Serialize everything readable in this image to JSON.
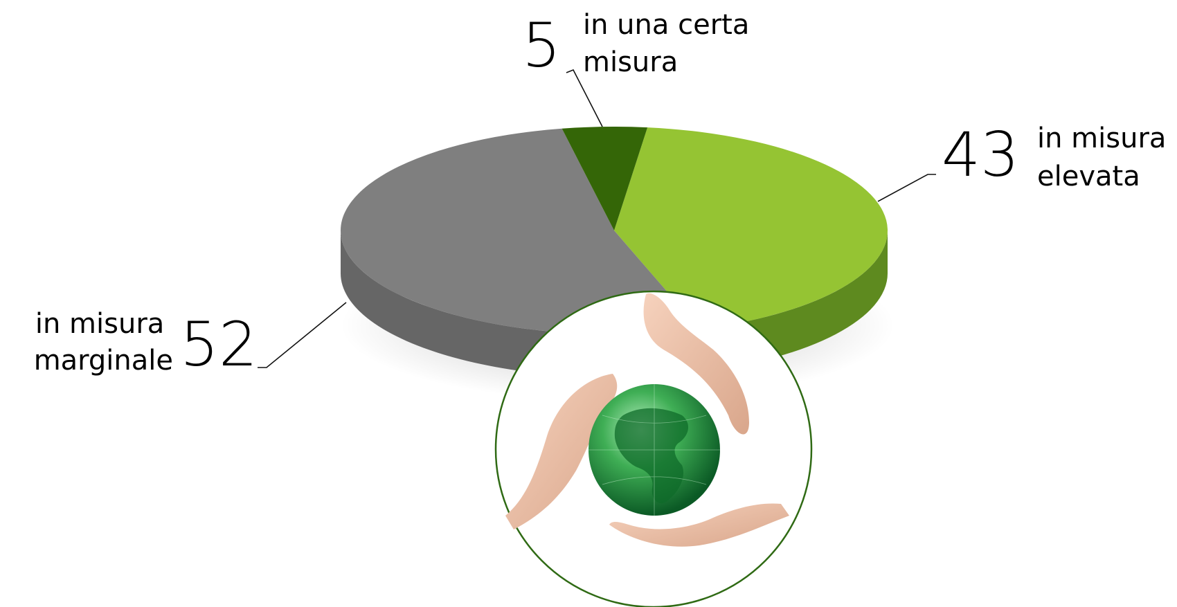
{
  "chart_data": {
    "type": "pie",
    "title": "",
    "slices": [
      {
        "label_lines": [
          "in misura",
          "elevata"
        ],
        "value": 43,
        "color": "#95c433",
        "side_color": "#5e8a1f"
      },
      {
        "label_lines": [
          "in misura",
          "marginale"
        ],
        "value": 52,
        "color": "#7f7f7f",
        "side_color": "#666666"
      },
      {
        "label_lines": [
          "in una certa",
          "misura"
        ],
        "value": 5,
        "color": "#346607",
        "side_color": "#244a05"
      }
    ],
    "legend": "none"
  },
  "illustration": {
    "icon": "earth-globe-in-hands-icon",
    "accent": "#2f6a14"
  }
}
